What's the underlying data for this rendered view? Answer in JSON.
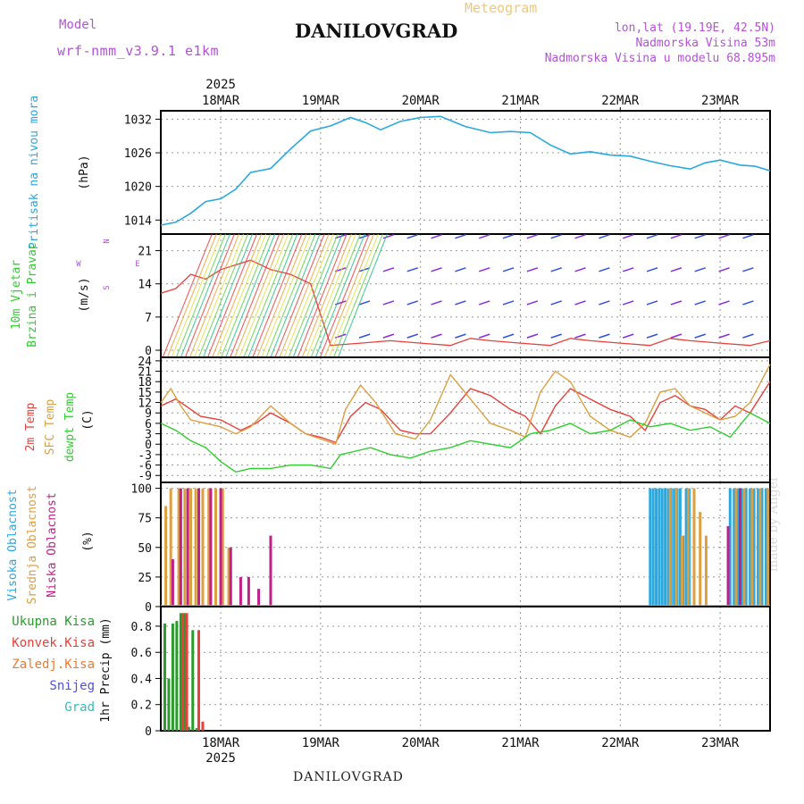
{
  "header": {
    "model_label": "Model",
    "model_name": "wrf-nmm_v3.9.1 e1km",
    "station": "DANILOVGRAD",
    "meteogram": "Meteogram",
    "lonlat": "lon,lat (19.19E, 42.5N)",
    "elevation": "Nadmorska Visina 53m",
    "elevation_model": "Nadmorska Visina u modelu 68.895m"
  },
  "footer": {
    "station": "DANILOVGRAD"
  },
  "watermark": "made by Angel",
  "colors": {
    "pressure": "#29a8e0",
    "t2m": "#e8403a",
    "sfc": "#dca040",
    "dew": "#2ccf2c",
    "high_cloud": "#29a8e0",
    "mid_cloud": "#dca040",
    "low_cloud": "#c0208a",
    "total_precip": "#2d9a2d",
    "conv_precip": "#e8403a",
    "freezing_precip": "#f07a30",
    "snow": "#5050e0",
    "hail": "#30c0c0",
    "axis_label": "#111111"
  },
  "chart_data": [
    {
      "type": "line",
      "panel": "pressure",
      "title": "",
      "x_tick_labels": [
        "18MAR",
        "19MAR",
        "20MAR",
        "21MAR",
        "22MAR",
        "23MAR"
      ],
      "x_year_label": "2025",
      "xlim": [
        -0.6,
        5.5
      ],
      "ylabel": "Pritisak na nivou mora",
      "unit": "(hPa)",
      "ylim": [
        1011.5,
        1033.5
      ],
      "yticks": [
        1014,
        1020,
        1026,
        1032
      ],
      "grid": true,
      "series": [
        {
          "name": "",
          "x": [
            -0.6,
            -0.45,
            -0.3,
            -0.15,
            0,
            0.15,
            0.3,
            0.5,
            0.7,
            0.9,
            1.1,
            1.3,
            1.45,
            1.6,
            1.8,
            2.0,
            2.2,
            2.45,
            2.7,
            2.9,
            3.1,
            3.3,
            3.5,
            3.7,
            3.9,
            4.1,
            4.3,
            4.5,
            4.7,
            4.85,
            5.0,
            5.2,
            5.35,
            5.5
          ],
          "values": [
            1013.1,
            1013.6,
            1015.2,
            1017.3,
            1017.8,
            1019.5,
            1022.5,
            1023.2,
            1026.7,
            1029.9,
            1030.8,
            1032.3,
            1031.4,
            1030.1,
            1031.6,
            1032.3,
            1032.5,
            1030.7,
            1029.6,
            1029.8,
            1029.6,
            1027.4,
            1025.8,
            1026.2,
            1025.6,
            1025.4,
            1024.5,
            1023.7,
            1023.1,
            1024.2,
            1024.7,
            1023.8,
            1023.6,
            1022.8
          ]
        }
      ]
    },
    {
      "type": "line",
      "panel": "wind",
      "title": "",
      "xlim": [
        -0.6,
        5.5
      ],
      "ylabel": "10m Vjetar Brzina i Pravac",
      "unit": "(m/s)",
      "ylim": [
        -1.5,
        24.5
      ],
      "yticks": [
        0,
        7,
        14,
        21
      ],
      "grid": true,
      "compass_labels": [
        "N",
        "W",
        "E",
        "S"
      ],
      "series": [
        {
          "name": "wind speed",
          "x": [
            -0.6,
            -0.45,
            -0.3,
            -0.15,
            0,
            0.15,
            0.3,
            0.5,
            0.7,
            0.9,
            1.1,
            1.4,
            1.7,
            2.0,
            2.3,
            2.5,
            2.7,
            3.0,
            3.3,
            3.5,
            3.7,
            4.0,
            4.3,
            4.5,
            4.7,
            5.0,
            5.3,
            5.5
          ],
          "values": [
            12,
            13,
            16,
            15,
            17,
            18,
            19,
            17,
            16,
            14,
            1,
            1.5,
            2,
            1.5,
            1,
            2.5,
            2,
            1.5,
            1,
            2.5,
            2,
            1.5,
            1,
            2.5,
            2,
            1.5,
            1,
            2
          ]
        }
      ]
    },
    {
      "type": "line",
      "panel": "temperature",
      "title": "",
      "xlim": [
        -0.6,
        5.5
      ],
      "ylabels": [
        "2m Temp",
        "SFC Temp",
        "dewpt Temp"
      ],
      "unit": "(C)",
      "ylim": [
        -11,
        25
      ],
      "yticks": [
        -9,
        -6,
        -3,
        0,
        3,
        6,
        9,
        12,
        15,
        18,
        21,
        24
      ],
      "grid": true,
      "series": [
        {
          "name": "2m Temp",
          "x": [
            -0.6,
            -0.45,
            -0.35,
            -0.2,
            0,
            0.2,
            0.35,
            0.5,
            0.7,
            0.85,
            1.0,
            1.15,
            1.3,
            1.45,
            1.6,
            1.8,
            1.95,
            2.1,
            2.3,
            2.5,
            2.7,
            2.9,
            3.05,
            3.2,
            3.35,
            3.5,
            3.7,
            3.9,
            4.1,
            4.25,
            4.4,
            4.55,
            4.7,
            4.85,
            5.0,
            5.15,
            5.3,
            5.5
          ],
          "values": [
            11,
            13,
            11,
            8,
            7,
            4,
            6,
            9,
            6,
            3,
            2,
            0.5,
            8,
            12,
            10,
            4,
            3,
            3,
            9,
            16,
            14,
            10,
            8,
            3,
            11,
            16,
            13,
            10,
            8,
            4,
            12,
            14,
            11,
            10,
            7,
            11,
            9,
            18
          ]
        },
        {
          "name": "SFC Temp",
          "x": [
            -0.6,
            -0.5,
            -0.4,
            -0.3,
            -0.15,
            0,
            0.15,
            0.3,
            0.5,
            0.7,
            0.85,
            1.0,
            1.15,
            1.25,
            1.4,
            1.55,
            1.75,
            1.95,
            2.1,
            2.3,
            2.5,
            2.7,
            2.9,
            3.05,
            3.2,
            3.35,
            3.5,
            3.7,
            3.9,
            4.1,
            4.25,
            4.4,
            4.55,
            4.7,
            4.85,
            5.0,
            5.15,
            5.3,
            5.5
          ],
          "values": [
            12,
            16,
            11,
            7,
            6,
            5,
            3,
            5,
            11,
            6,
            3,
            1.5,
            0,
            10,
            17,
            12,
            3,
            1.5,
            7,
            20,
            13,
            6,
            4,
            2,
            15,
            21,
            18,
            8,
            4,
            2,
            6,
            15,
            16,
            11,
            9,
            7,
            8,
            12,
            23
          ]
        },
        {
          "name": "dewpt Temp",
          "x": [
            -0.6,
            -0.45,
            -0.3,
            -0.15,
            0,
            0.15,
            0.3,
            0.5,
            0.7,
            0.9,
            1.1,
            1.2,
            1.35,
            1.5,
            1.7,
            1.9,
            2.1,
            2.3,
            2.5,
            2.7,
            2.9,
            3.1,
            3.3,
            3.5,
            3.7,
            3.9,
            4.1,
            4.3,
            4.5,
            4.7,
            4.9,
            5.1,
            5.3,
            5.5
          ],
          "values": [
            6,
            4,
            1,
            -1,
            -5,
            -8,
            -7,
            -7,
            -6,
            -6,
            -7,
            -3,
            -2,
            -1,
            -3,
            -4,
            -2,
            -1,
            1,
            0,
            -1,
            3,
            4,
            6,
            3,
            4,
            7,
            5,
            6,
            4,
            5,
            2,
            9,
            6
          ]
        }
      ]
    },
    {
      "type": "bar",
      "panel": "cloud",
      "title": "",
      "xlim": [
        -0.6,
        5.5
      ],
      "ylabels": [
        "Visoka Oblacnost",
        "Srednja Oblacnost",
        "Niska Oblacnost"
      ],
      "unit": "(%)",
      "ylim": [
        0,
        105
      ],
      "yticks": [
        0,
        25,
        50,
        75,
        100
      ],
      "grid": true,
      "series": [
        {
          "name": "Visoka Oblacnost",
          "x": [
            4.3,
            4.33,
            4.36,
            4.39,
            4.42,
            4.45,
            4.48,
            4.51,
            4.54,
            4.57,
            4.6,
            4.63,
            4.66,
            4.69,
            5.1,
            5.14,
            5.18,
            5.22,
            5.26,
            5.3,
            5.34,
            5.38,
            5.42,
            5.46
          ],
          "values": [
            100,
            100,
            100,
            100,
            100,
            100,
            100,
            100,
            100,
            100,
            100,
            60,
            100,
            100,
            100,
            100,
            100,
            100,
            100,
            100,
            100,
            100,
            100,
            100
          ]
        },
        {
          "name": "Srednja Oblacnost",
          "x": [
            -0.55,
            -0.5,
            -0.42,
            -0.36,
            -0.3,
            -0.25,
            -0.18,
            -0.12,
            -0.05,
            0.02,
            0.08,
            4.5,
            4.56,
            4.62,
            4.68,
            4.74,
            4.8,
            4.86,
            5.16,
            5.24,
            5.32,
            5.4,
            5.48
          ],
          "values": [
            85,
            100,
            100,
            100,
            100,
            100,
            100,
            100,
            100,
            100,
            50,
            100,
            100,
            60,
            100,
            100,
            80,
            60,
            100,
            100,
            100,
            100,
            100
          ]
        },
        {
          "name": "Niska Oblacnost",
          "x": [
            -0.48,
            -0.4,
            -0.33,
            -0.22,
            -0.1,
            0,
            0.1,
            0.2,
            0.28,
            0.38,
            0.5,
            5.08,
            5.2
          ],
          "values": [
            40,
            100,
            100,
            100,
            100,
            100,
            50,
            25,
            25,
            15,
            60,
            68,
            100
          ]
        }
      ]
    },
    {
      "type": "bar",
      "panel": "precip",
      "title": "",
      "xlim": [
        -0.6,
        5.5
      ],
      "ylabels": [
        "Ukupna Kisa",
        "Konvek.Kisa",
        "Zaledj.Kisa",
        "Snijeg",
        "Grad"
      ],
      "ylabel": "1hr Precip (mm)",
      "ylim": [
        0,
        0.95
      ],
      "yticks": [
        0,
        0.2,
        0.4,
        0.6,
        0.8
      ],
      "grid": true,
      "series": [
        {
          "name": "Ukupna Kisa",
          "x": [
            -0.56,
            -0.52,
            -0.48,
            -0.44,
            -0.4,
            -0.36,
            -0.32,
            -0.28,
            -0.24,
            -0.2
          ],
          "values": [
            0.82,
            0.4,
            0.82,
            0.84,
            0.9,
            0.9,
            0.03,
            0.77,
            0.02,
            0
          ]
        },
        {
          "name": "Konvek.Kisa",
          "x": [
            -0.38,
            -0.34,
            -0.22,
            -0.18
          ],
          "values": [
            0.9,
            0.9,
            0.77,
            0.07
          ]
        }
      ]
    }
  ]
}
